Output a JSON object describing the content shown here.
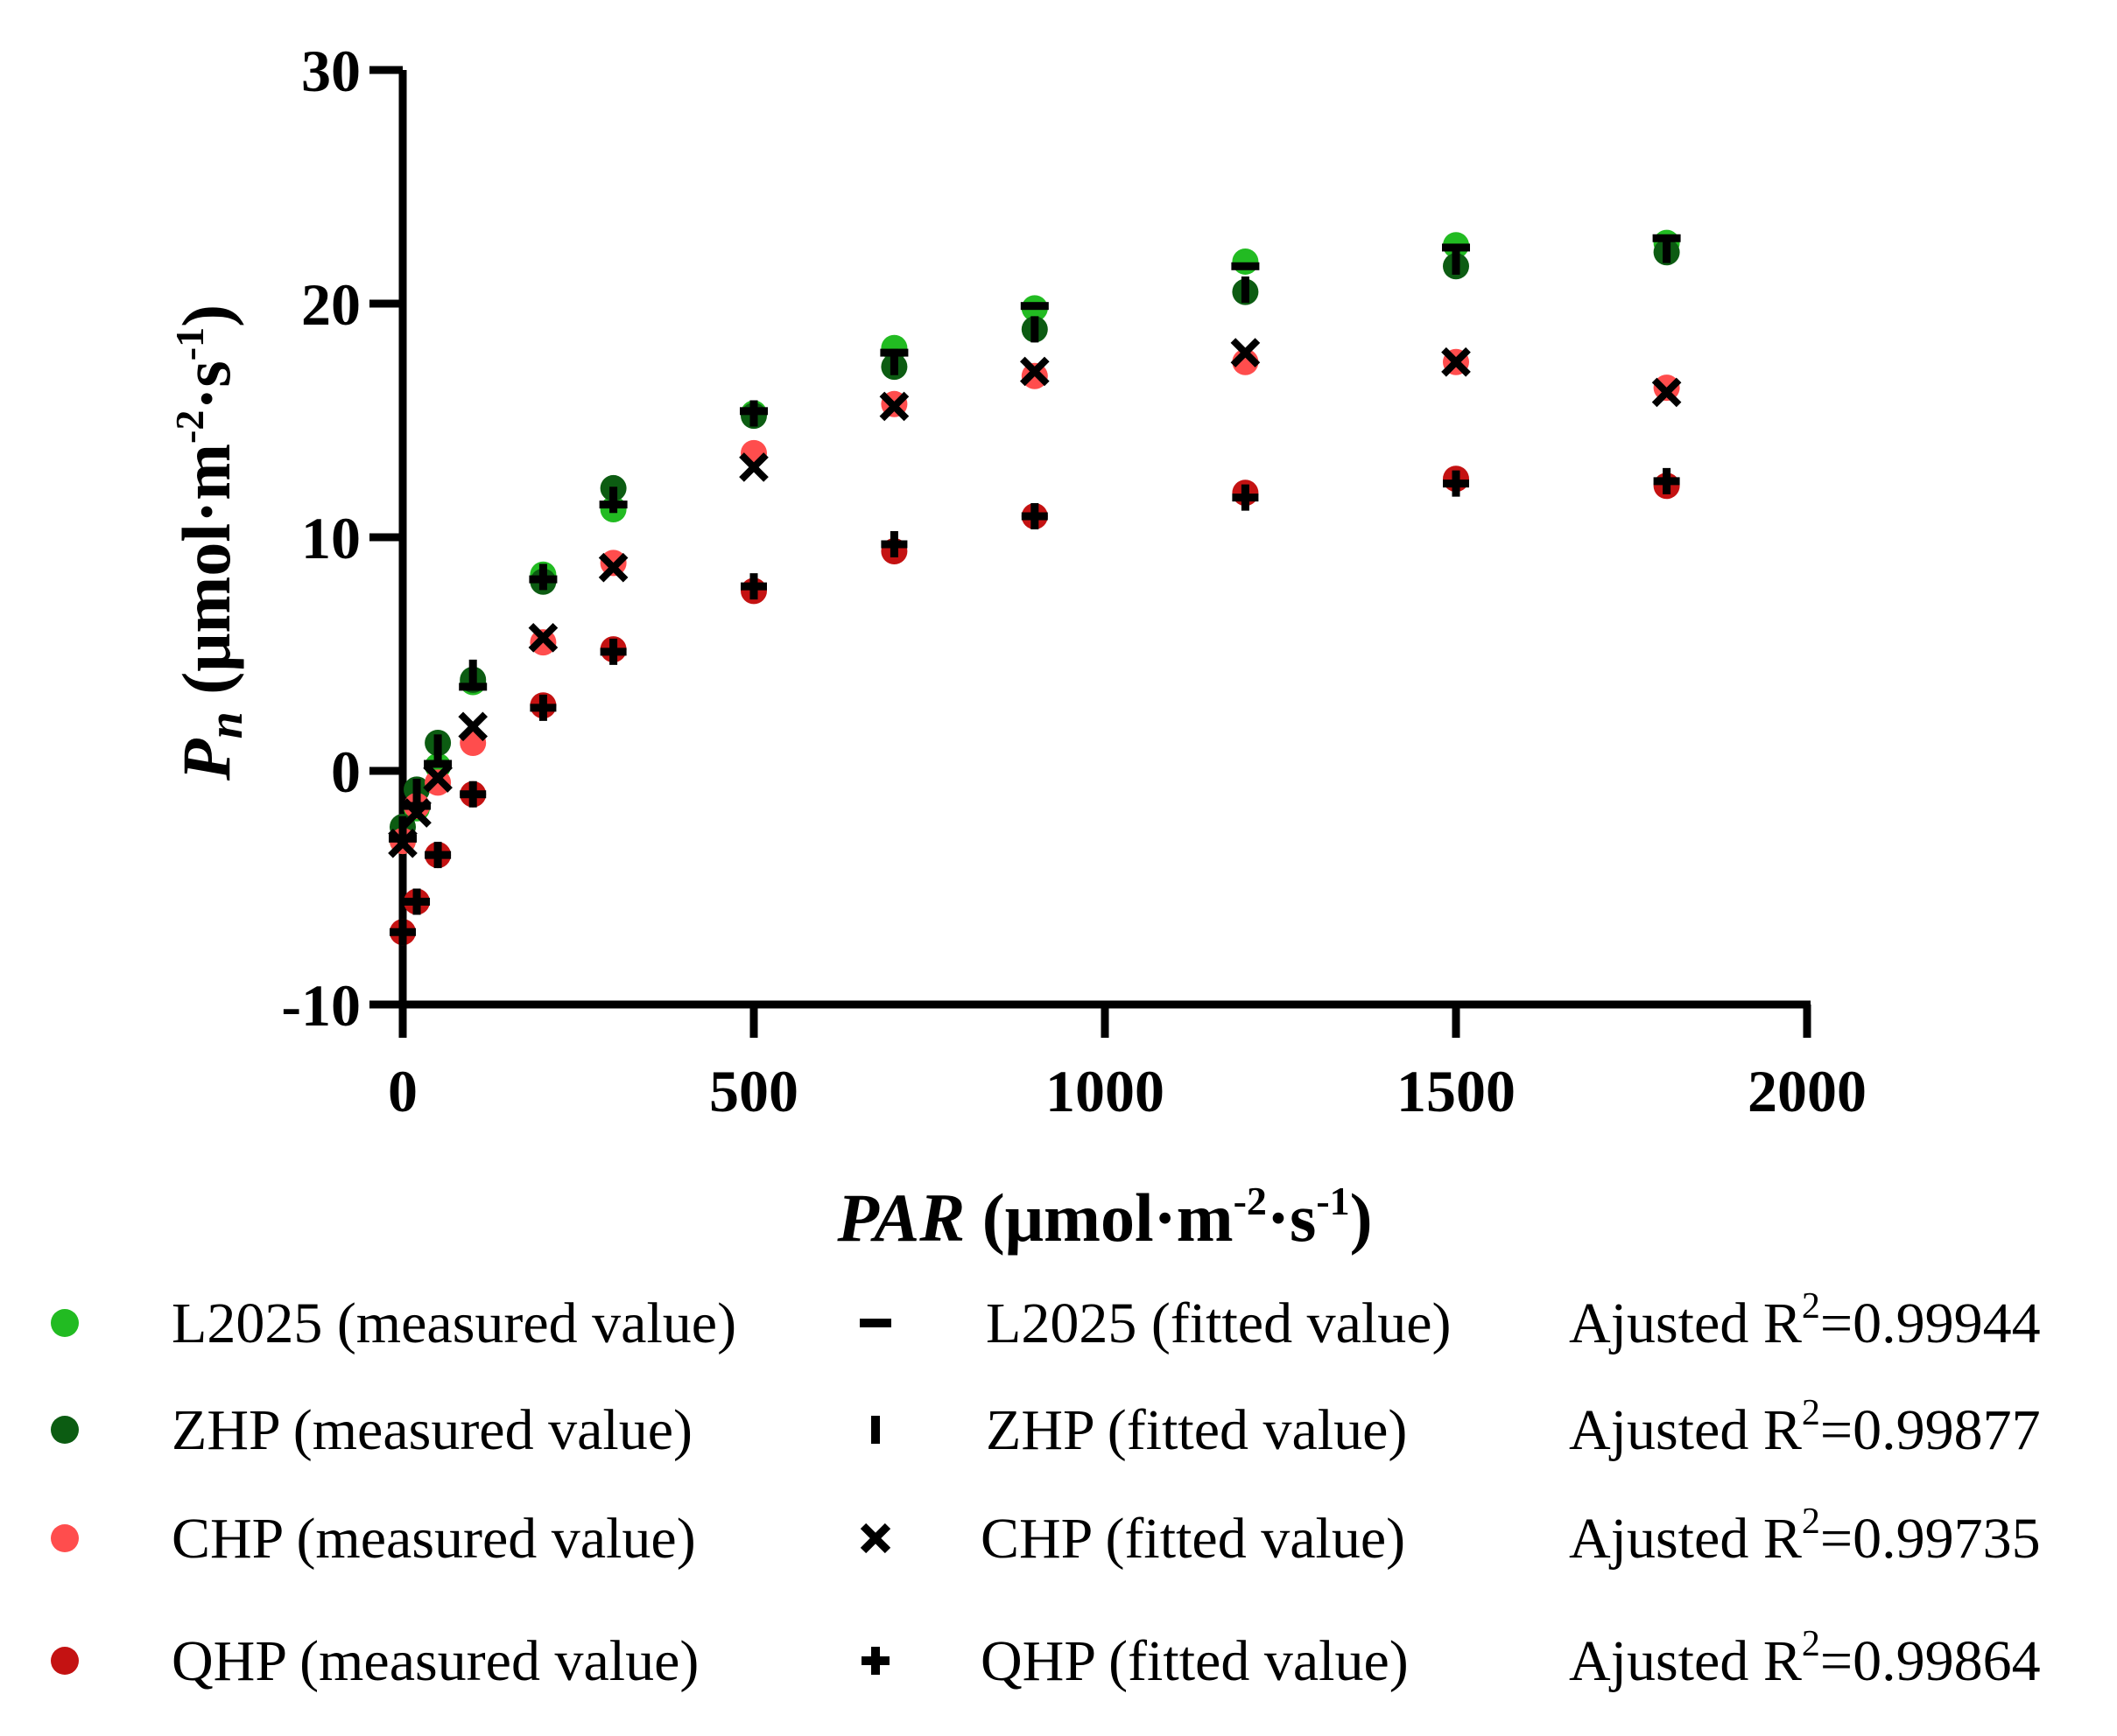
{
  "chart_data": {
    "type": "scatter",
    "x_axis": {
      "label_italic": "PAR",
      "label_unit_start": " (μmol·m",
      "label_sup1": "-2",
      "label_mid": "·s",
      "label_sup2": "-1",
      "label_end": ")",
      "range": [
        0,
        2000
      ],
      "ticks": [
        "0",
        "500",
        "1000",
        "1500",
        "2000"
      ]
    },
    "y_axis": {
      "label_italic": "P",
      "label_sub": "n",
      "label_unit_start": " (μmol·m",
      "label_sup1": "-2",
      "label_mid": "·s",
      "label_sup2": "-1",
      "label_end": ")",
      "range": [
        -10,
        30
      ],
      "ticks": [
        "-10",
        "0",
        "10",
        "20",
        "30"
      ]
    },
    "x": [
      0,
      20,
      50,
      100,
      200,
      300,
      500,
      700,
      900,
      1200,
      1500,
      1800
    ],
    "series": [
      {
        "name": "L2025 (measured value)",
        "marker": "circle",
        "color": "#22bb22",
        "values": [
          -3.0,
          -1.6,
          0.2,
          3.8,
          8.4,
          11.2,
          15.3,
          18.1,
          19.8,
          21.8,
          22.5,
          22.6
        ]
      },
      {
        "name": "ZHP (measured value)",
        "marker": "circle",
        "color": "#0c5c12",
        "values": [
          -2.4,
          -0.8,
          1.2,
          3.9,
          8.1,
          12.1,
          15.2,
          17.3,
          18.9,
          20.5,
          21.6,
          22.2
        ]
      },
      {
        "name": "CHP (measured value)",
        "marker": "circle",
        "color": "#ff4d4d",
        "values": [
          -3.0,
          -1.5,
          -0.5,
          1.2,
          5.5,
          8.9,
          13.6,
          15.7,
          16.9,
          17.5,
          17.5,
          16.4
        ]
      },
      {
        "name": "QHP (measured value)",
        "marker": "circle",
        "color": "#c41212",
        "values": [
          -6.9,
          -5.6,
          -3.6,
          -1.0,
          2.8,
          5.2,
          7.7,
          9.4,
          10.9,
          11.9,
          12.5,
          12.2
        ]
      },
      {
        "name": "L2025 (fitted value)",
        "marker": "dash",
        "color": "#000000",
        "values": [
          -2.9,
          -1.5,
          0.3,
          3.6,
          8.2,
          11.4,
          15.4,
          17.9,
          19.9,
          21.6,
          22.4,
          22.8
        ]
      },
      {
        "name": "ZHP (fitted value)",
        "marker": "vbar",
        "color": "#000000",
        "values": [
          -2.5,
          -0.9,
          1.0,
          4.2,
          8.3,
          11.6,
          15.3,
          17.5,
          18.9,
          20.6,
          21.8,
          22.3
        ]
      },
      {
        "name": "CHP (fitted value)",
        "marker": "x",
        "color": "#000000",
        "values": [
          -3.1,
          -1.8,
          -0.3,
          1.9,
          5.7,
          8.7,
          13.0,
          15.6,
          17.1,
          17.9,
          17.5,
          16.2
        ]
      },
      {
        "name": "QHP (fitted value)",
        "marker": "plus",
        "color": "#000000",
        "values": [
          -6.9,
          -5.6,
          -3.6,
          -1.0,
          2.7,
          5.1,
          7.9,
          9.7,
          10.9,
          11.7,
          12.3,
          12.4
        ]
      }
    ]
  },
  "legend": {
    "rows": [
      {
        "measured_label": "L2025 (measured value)",
        "measured_color": "#22bb22",
        "fitted_label": "L2025 (fitted value)",
        "fitted_marker": "dash",
        "r2_prefix": "Ajusted R",
        "r2_sup": "2",
        "r2_value": "=0.99944"
      },
      {
        "measured_label": "ZHP (measured value)",
        "measured_color": "#0c5c12",
        "fitted_label": "ZHP (fitted value)",
        "fitted_marker": "vbar",
        "r2_prefix": "Ajusted R",
        "r2_sup": "2",
        "r2_value": "=0.99877"
      },
      {
        "measured_label": "CHP (measured value)",
        "measured_color": "#ff4d4d",
        "fitted_label": "CHP (fitted value)",
        "fitted_marker": "x",
        "r2_prefix": "Ajusted R",
        "r2_sup": "2",
        "r2_value": "=0.99735"
      },
      {
        "measured_label": "QHP (measured value)",
        "measured_color": "#c41212",
        "fitted_label": "QHP (fitted value)",
        "fitted_marker": "plus",
        "r2_prefix": "Ajusted R",
        "r2_sup": "2",
        "r2_value": "=0.99864"
      }
    ]
  }
}
